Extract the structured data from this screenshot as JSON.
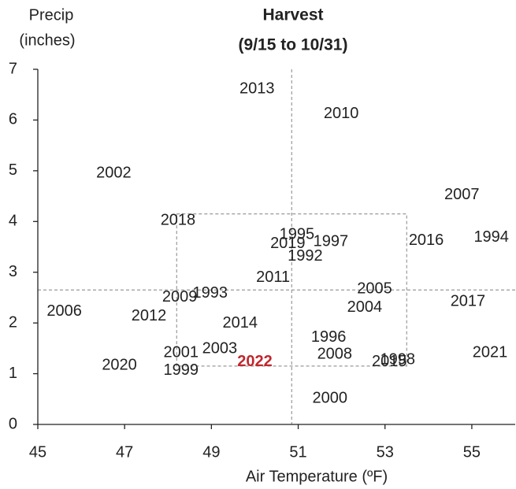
{
  "chart_data": {
    "type": "scatter",
    "title": "Harvest",
    "subtitle": "(9/15 to 10/31)",
    "y_label": [
      "Precip",
      "(inches)"
    ],
    "x_label": "Air Temperature (ºF)",
    "xlim": [
      45,
      56
    ],
    "ylim": [
      0,
      7
    ],
    "xticks": [
      45,
      47,
      49,
      51,
      53,
      55
    ],
    "yticks": [
      0,
      1,
      2,
      3,
      4,
      5,
      6,
      7
    ],
    "mean": {
      "x": 50.85,
      "y": 2.65
    },
    "box": {
      "x": [
        48.2,
        53.5
      ],
      "y": [
        1.15,
        4.15
      ]
    },
    "points": [
      {
        "label": "2013",
        "x": 50.05,
        "y": 6.61,
        "color": "#222222"
      },
      {
        "label": "2010",
        "x": 51.99,
        "y": 6.12,
        "color": "#222222"
      },
      {
        "label": "2002",
        "x": 46.75,
        "y": 4.95,
        "color": "#222222"
      },
      {
        "label": "2007",
        "x": 54.77,
        "y": 4.52,
        "color": "#222222"
      },
      {
        "label": "2018",
        "x": 48.23,
        "y": 4.02,
        "color": "#222222"
      },
      {
        "label": "1995",
        "x": 50.97,
        "y": 3.74,
        "color": "#222222"
      },
      {
        "label": "2019",
        "x": 50.76,
        "y": 3.56,
        "color": "#222222"
      },
      {
        "label": "1997",
        "x": 51.75,
        "y": 3.6,
        "color": "#222222"
      },
      {
        "label": "1992",
        "x": 51.16,
        "y": 3.31,
        "color": "#222222"
      },
      {
        "label": "2016",
        "x": 53.95,
        "y": 3.62,
        "color": "#222222"
      },
      {
        "label": "1994",
        "x": 55.45,
        "y": 3.68,
        "color": "#222222"
      },
      {
        "label": "2011",
        "x": 50.42,
        "y": 2.89,
        "color": "#222222"
      },
      {
        "label": "1993",
        "x": 48.97,
        "y": 2.58,
        "color": "#222222"
      },
      {
        "label": "2009",
        "x": 48.27,
        "y": 2.5,
        "color": "#222222"
      },
      {
        "label": "2005",
        "x": 52.76,
        "y": 2.67,
        "color": "#222222"
      },
      {
        "label": "2017",
        "x": 54.91,
        "y": 2.42,
        "color": "#222222"
      },
      {
        "label": "2004",
        "x": 52.53,
        "y": 2.3,
        "color": "#222222"
      },
      {
        "label": "2006",
        "x": 45.61,
        "y": 2.22,
        "color": "#222222"
      },
      {
        "label": "2012",
        "x": 47.56,
        "y": 2.13,
        "color": "#222222"
      },
      {
        "label": "2014",
        "x": 49.66,
        "y": 1.99,
        "color": "#222222"
      },
      {
        "label": "1996",
        "x": 51.7,
        "y": 1.71,
        "color": "#222222"
      },
      {
        "label": "2008",
        "x": 51.84,
        "y": 1.38,
        "color": "#222222"
      },
      {
        "label": "2001",
        "x": 48.3,
        "y": 1.41,
        "color": "#222222"
      },
      {
        "label": "2003",
        "x": 49.19,
        "y": 1.49,
        "color": "#222222"
      },
      {
        "label": "2022",
        "x": 50.0,
        "y": 1.23,
        "color": "#c0272d"
      },
      {
        "label": "2020",
        "x": 46.88,
        "y": 1.16,
        "color": "#222222"
      },
      {
        "label": "1999",
        "x": 48.3,
        "y": 1.06,
        "color": "#222222"
      },
      {
        "label": "2015",
        "x": 53.1,
        "y": 1.23,
        "color": "#222222"
      },
      {
        "label": "1998",
        "x": 53.29,
        "y": 1.27,
        "color": "#222222"
      },
      {
        "label": "2021",
        "x": 55.42,
        "y": 1.41,
        "color": "#222222"
      },
      {
        "label": "2000",
        "x": 51.73,
        "y": 0.51,
        "color": "#222222"
      }
    ]
  }
}
